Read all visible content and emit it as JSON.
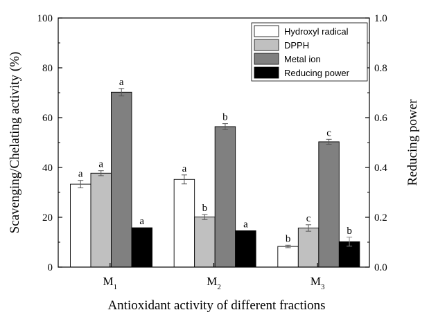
{
  "chart_data": {
    "type": "bar",
    "xlabel": "Antioxidant activity of different fractions",
    "ylabel": "Scavenging/Chelating activity (%)",
    "y2label": "Reducing power",
    "ylim": [
      0,
      100
    ],
    "y2lim": [
      0,
      1.0
    ],
    "yticks": [
      "0",
      "20",
      "40",
      "60",
      "80",
      "100"
    ],
    "y2ticks": [
      "0.0",
      "0.2",
      "0.4",
      "0.6",
      "0.8",
      "1.0"
    ],
    "categories": [
      {
        "base": "M",
        "sub": "1"
      },
      {
        "base": "M",
        "sub": "2"
      },
      {
        "base": "M",
        "sub": "3"
      }
    ],
    "legend_position": "top-right",
    "grid": false,
    "series": [
      {
        "name": "Hydroxyl radical",
        "axis": "left",
        "color": "#ffffff",
        "values": [
          33.3,
          35.2,
          8.3
        ],
        "errors": [
          1.5,
          1.8,
          0.5
        ],
        "letters": [
          "a",
          "a",
          "b"
        ]
      },
      {
        "name": "DPPH",
        "axis": "left",
        "color": "#c0c0c0",
        "values": [
          37.7,
          20.1,
          15.7
        ],
        "errors": [
          1.0,
          1.0,
          1.3
        ],
        "letters": [
          "a",
          "b",
          "c"
        ]
      },
      {
        "name": "Metal ion",
        "axis": "left",
        "color": "#808080",
        "values": [
          70.2,
          56.4,
          50.3
        ],
        "errors": [
          1.5,
          1.2,
          1.0
        ],
        "letters": [
          "a",
          "b",
          "c"
        ]
      },
      {
        "name": "Reducing power",
        "axis": "right",
        "color": "#000000",
        "values": [
          0.158,
          0.146,
          0.102
        ],
        "errors": [
          0.0,
          0.0,
          0.018
        ],
        "letters": [
          "a",
          "a",
          "b"
        ]
      }
    ]
  }
}
